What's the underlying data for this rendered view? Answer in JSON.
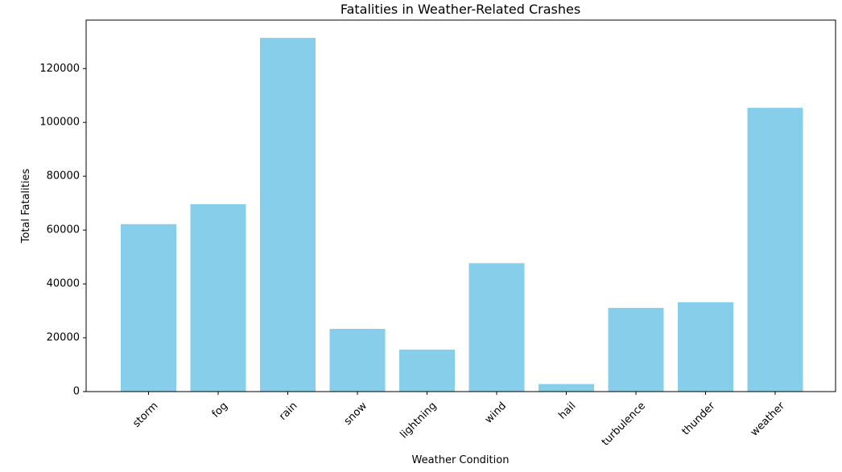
{
  "chart_data": {
    "type": "bar",
    "title": "Fatalities in Weather-Related Crashes",
    "xlabel": "Weather Condition",
    "ylabel": "Total Fatalities",
    "categories": [
      "storm",
      "fog",
      "rain",
      "snow",
      "lightning",
      "wind",
      "hail",
      "turbulence",
      "thunder",
      "weather"
    ],
    "values": [
      62200,
      69600,
      131400,
      23300,
      15600,
      47700,
      2800,
      31100,
      33200,
      105400
    ],
    "ylim": [
      0,
      138000
    ],
    "yticks": [
      "0",
      "20000",
      "40000",
      "60000",
      "80000",
      "100000",
      "120000"
    ],
    "bar_color": "#87CEEB",
    "grid": false,
    "legend": "none"
  }
}
